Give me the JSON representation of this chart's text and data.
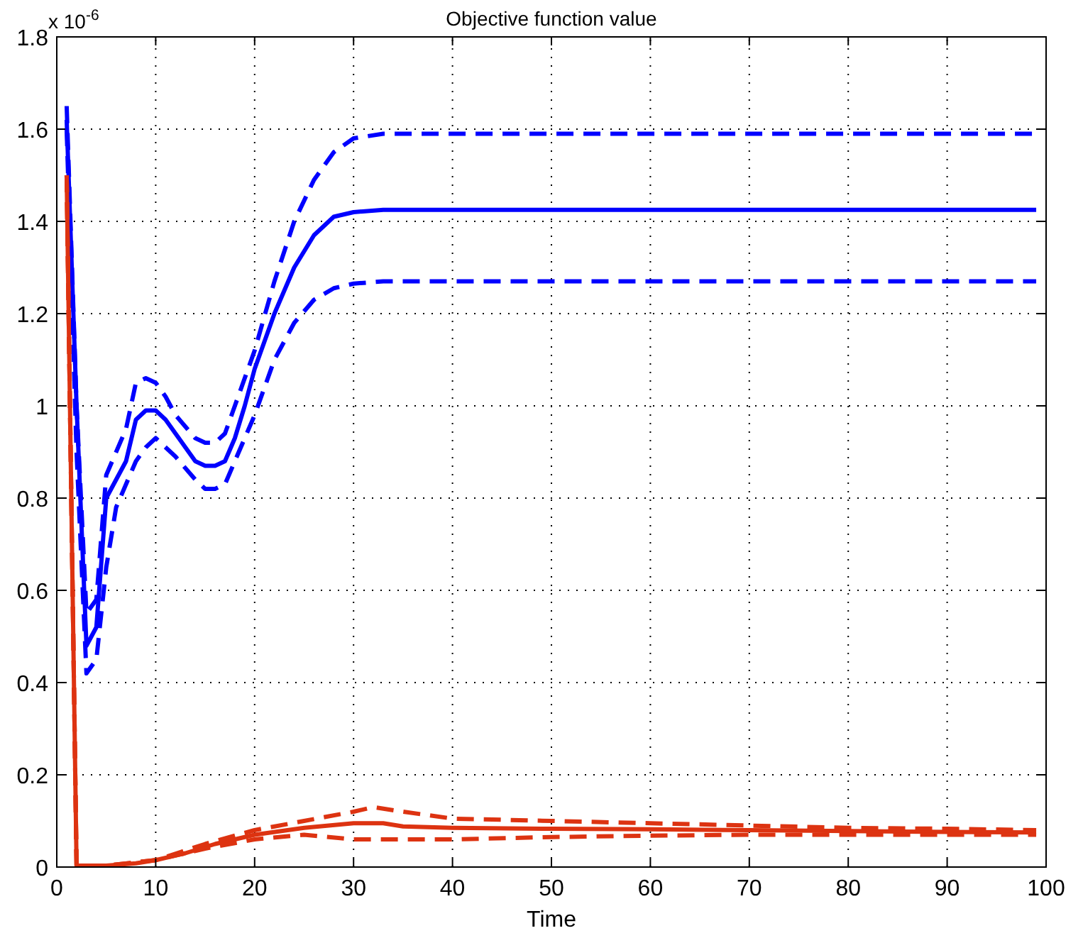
{
  "chart_data": {
    "type": "line",
    "title": "Objective function value",
    "xlabel": "Time",
    "annotations": [
      "x 10$^{-6}$"
    ],
    "xlim": [
      0,
      100
    ],
    "xticks": [
      0,
      10,
      20,
      30,
      40,
      50,
      60,
      70,
      80,
      90,
      100
    ],
    "ylim": [
      0,
      1.8
    ],
    "yticks": [
      0,
      0.2,
      0.4,
      0.6,
      0.8,
      1,
      1.2,
      1.4,
      1.6,
      1.8
    ],
    "grid": true,
    "marker": "none",
    "series": [
      {
        "color": "#0000ff",
        "line_style": "solid",
        "x": [
          1,
          2,
          3,
          4,
          5,
          6,
          7,
          8,
          9,
          10,
          11,
          12,
          13,
          14,
          15,
          16,
          17,
          18,
          19,
          20,
          22,
          24,
          26,
          28,
          30,
          33,
          40,
          60,
          80,
          99
        ],
        "values": [
          1.62,
          1.0,
          0.48,
          0.52,
          0.8,
          0.84,
          0.88,
          0.97,
          0.99,
          0.99,
          0.97,
          0.94,
          0.91,
          0.88,
          0.87,
          0.87,
          0.88,
          0.93,
          1.0,
          1.08,
          1.2,
          1.3,
          1.37,
          1.41,
          1.42,
          1.425,
          1.425,
          1.425,
          1.425,
          1.425
        ]
      },
      {
        "color": "#0000ff",
        "line_style": "dashed",
        "x": [
          1,
          2,
          3,
          4,
          5,
          7,
          8,
          9,
          10,
          11,
          12,
          14,
          15,
          16,
          17,
          18,
          20,
          22,
          24,
          26,
          28,
          30,
          33,
          40,
          60,
          80,
          99
        ],
        "values": [
          1.65,
          1.0,
          0.55,
          0.58,
          0.85,
          0.95,
          1.05,
          1.06,
          1.05,
          1.02,
          0.98,
          0.93,
          0.92,
          0.92,
          0.94,
          1.0,
          1.12,
          1.27,
          1.4,
          1.49,
          1.55,
          1.58,
          1.59,
          1.59,
          1.59,
          1.59,
          1.59
        ]
      },
      {
        "color": "#0000ff",
        "line_style": "dashed",
        "x": [
          1,
          2,
          3,
          4,
          5,
          6,
          8,
          9,
          10,
          11,
          12,
          14,
          15,
          16,
          17,
          18,
          20,
          22,
          24,
          26,
          28,
          30,
          33,
          40,
          60,
          80,
          99
        ],
        "values": [
          1.6,
          0.9,
          0.42,
          0.45,
          0.65,
          0.78,
          0.88,
          0.91,
          0.93,
          0.91,
          0.89,
          0.84,
          0.82,
          0.82,
          0.83,
          0.88,
          0.98,
          1.1,
          1.18,
          1.23,
          1.255,
          1.265,
          1.27,
          1.27,
          1.27,
          1.27,
          1.27
        ]
      },
      {
        "color": "#dd3311",
        "line_style": "solid",
        "x": [
          1,
          2,
          5,
          8,
          10,
          13,
          16,
          20,
          25,
          30,
          33,
          35,
          40,
          50,
          60,
          70,
          80,
          90,
          99
        ],
        "values": [
          1.5,
          0.003,
          0.003,
          0.008,
          0.015,
          0.03,
          0.05,
          0.07,
          0.085,
          0.095,
          0.095,
          0.088,
          0.085,
          0.083,
          0.082,
          0.08,
          0.078,
          0.076,
          0.075
        ]
      },
      {
        "color": "#dd3311",
        "line_style": "dashed",
        "x": [
          1,
          2,
          5,
          10,
          15,
          20,
          25,
          30,
          32,
          35,
          40,
          50,
          60,
          70,
          80,
          90,
          99
        ],
        "values": [
          1.5,
          0.003,
          0.003,
          0.015,
          0.05,
          0.08,
          0.1,
          0.12,
          0.13,
          0.12,
          0.105,
          0.1,
          0.095,
          0.09,
          0.085,
          0.083,
          0.08
        ]
      },
      {
        "color": "#dd3311",
        "line_style": "dashed",
        "x": [
          1,
          2,
          5,
          10,
          15,
          20,
          25,
          30,
          40,
          50,
          60,
          70,
          80,
          90,
          99
        ],
        "values": [
          1.5,
          0.003,
          0.003,
          0.015,
          0.04,
          0.06,
          0.07,
          0.06,
          0.06,
          0.065,
          0.068,
          0.07,
          0.07,
          0.07,
          0.07
        ]
      }
    ]
  }
}
